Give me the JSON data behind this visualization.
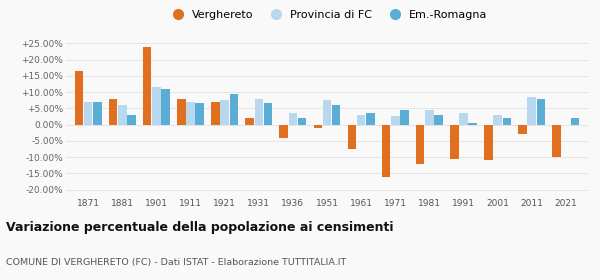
{
  "years": [
    1871,
    1881,
    1901,
    1911,
    1921,
    1931,
    1936,
    1951,
    1961,
    1971,
    1981,
    1991,
    2001,
    2011,
    2021
  ],
  "verghereto": [
    16.5,
    8.0,
    24.0,
    8.0,
    7.0,
    2.0,
    -4.0,
    -1.0,
    -7.5,
    -16.0,
    -12.0,
    -10.5,
    -11.0,
    -3.0,
    -10.0
  ],
  "provincia_fc": [
    7.0,
    6.0,
    11.5,
    7.0,
    7.5,
    8.0,
    3.5,
    7.5,
    3.0,
    2.5,
    4.5,
    3.5,
    3.0,
    8.5,
    null
  ],
  "em_romagna": [
    7.0,
    3.0,
    11.0,
    6.5,
    9.5,
    6.5,
    2.0,
    6.0,
    3.5,
    4.5,
    3.0,
    0.5,
    2.0,
    8.0,
    2.0
  ],
  "color_verghereto": "#e07020",
  "color_provincia": "#b8d8f0",
  "color_emromagna": "#5aaed5",
  "title": "Variazione percentuale della popolazione ai censimenti",
  "subtitle": "COMUNE DI VERGHERETO (FC) - Dati ISTAT - Elaborazione TUTTITALIA.IT",
  "legend_labels": [
    "Verghereto",
    "Provincia di FC",
    "Em.-Romagna"
  ],
  "ylim": [
    -22,
    28
  ],
  "yticks": [
    -20,
    -15,
    -10,
    -5,
    0,
    5,
    10,
    15,
    20,
    25
  ],
  "ytick_labels": [
    "-20.00%",
    "-15.00%",
    "-10.00%",
    "-5.00%",
    "0.00%",
    "+5.00%",
    "+10.00%",
    "+15.00%",
    "+20.00%",
    "+25.00%"
  ],
  "background_color": "#f9f9f9",
  "grid_color": "#e0e0e0"
}
